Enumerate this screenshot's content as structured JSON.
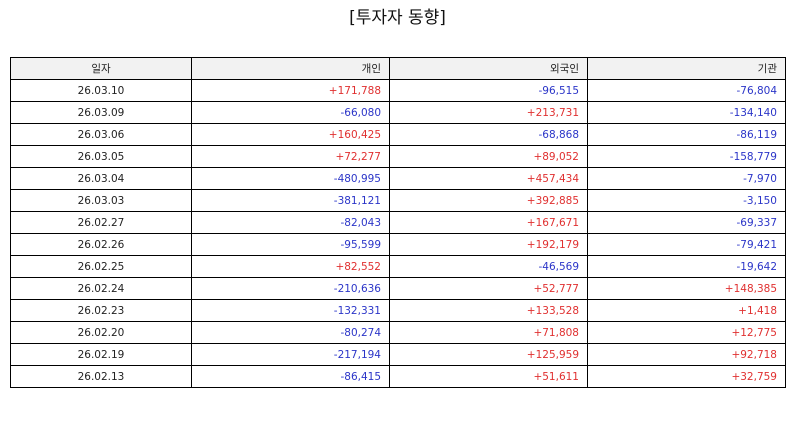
{
  "title": "[투자자 동향]",
  "colors": {
    "positive": "#e03030",
    "negative": "#2b35c8",
    "header_bg": "#f2f2f2",
    "border": "#000000"
  },
  "table": {
    "headers": [
      "일자",
      "개인",
      "외국인",
      "기관"
    ],
    "rows": [
      [
        "26.03.10",
        "+171,788",
        "-96,515",
        "-76,804"
      ],
      [
        "26.03.09",
        "-66,080",
        "+213,731",
        "-134,140"
      ],
      [
        "26.03.06",
        "+160,425",
        "-68,868",
        "-86,119"
      ],
      [
        "26.03.05",
        "+72,277",
        "+89,052",
        "-158,779"
      ],
      [
        "26.03.04",
        "-480,995",
        "+457,434",
        "-7,970"
      ],
      [
        "26.03.03",
        "-381,121",
        "+392,885",
        "-3,150"
      ],
      [
        "26.02.27",
        "-82,043",
        "+167,671",
        "-69,337"
      ],
      [
        "26.02.26",
        "-95,599",
        "+192,179",
        "-79,421"
      ],
      [
        "26.02.25",
        "+82,552",
        "-46,569",
        "-19,642"
      ],
      [
        "26.02.24",
        "-210,636",
        "+52,777",
        "+148,385"
      ],
      [
        "26.02.23",
        "-132,331",
        "+133,528",
        "+1,418"
      ],
      [
        "26.02.20",
        "-80,274",
        "+71,808",
        "+12,775"
      ],
      [
        "26.02.19",
        "-217,194",
        "+125,959",
        "+92,718"
      ],
      [
        "26.02.13",
        "-86,415",
        "+51,611",
        "+32,759"
      ]
    ]
  }
}
